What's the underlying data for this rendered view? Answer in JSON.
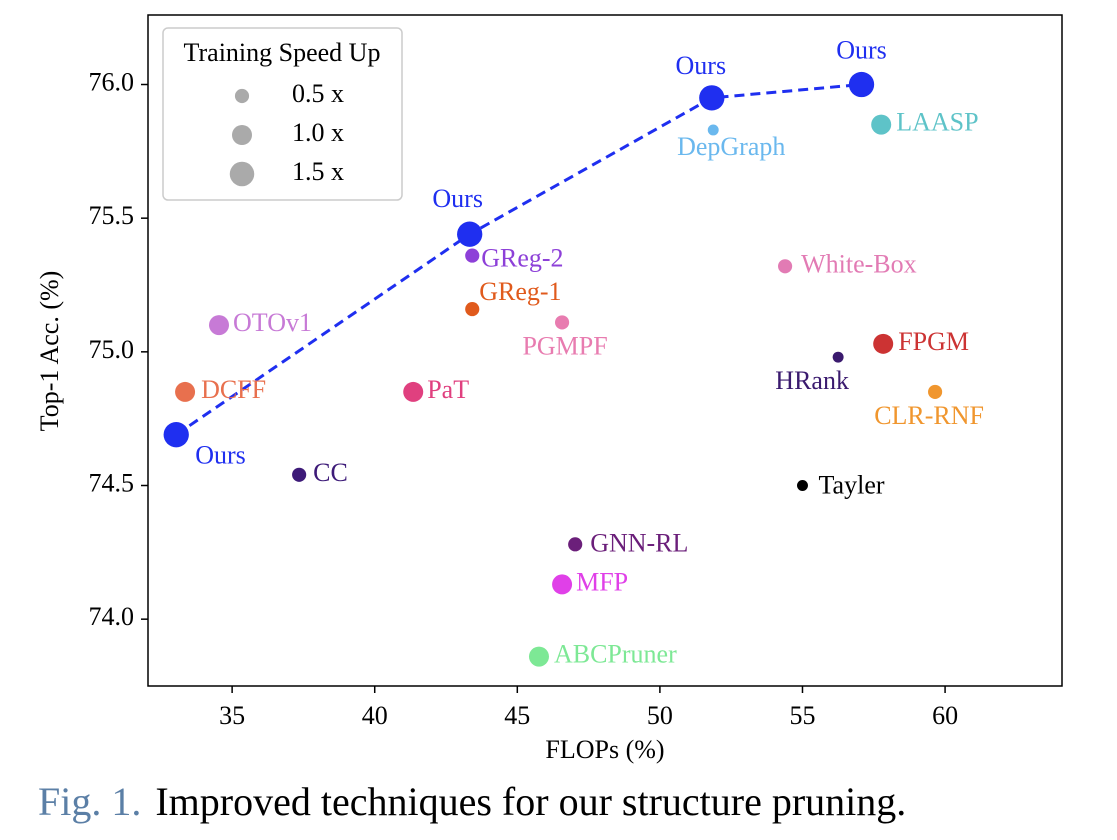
{
  "chart_data": {
    "type": "scatter",
    "xlabel": "FLOPs (%)",
    "ylabel": "Top-1 Acc. (%)",
    "xlim": [
      32.05,
      64.1
    ],
    "ylim": [
      73.75,
      76.26
    ],
    "xticks": [
      35,
      40,
      45,
      50,
      55,
      60
    ],
    "yticks": [
      {
        "value": 74,
        "label": "74.0"
      },
      {
        "value": 74.5,
        "label": "74.5"
      },
      {
        "value": 75,
        "label": "75.0"
      },
      {
        "value": 75.5,
        "label": "75.5"
      },
      {
        "value": 76,
        "label": "76.0"
      }
    ],
    "legend": {
      "title": "Training Speed Up",
      "position": "upper left",
      "sizes": [
        {
          "value": 0.5,
          "label": "0.5 x"
        },
        {
          "value": 1.0,
          "label": "1.0 x"
        },
        {
          "value": 1.5,
          "label": "1.5 x"
        }
      ]
    },
    "ours": {
      "color": "#1f2ff0",
      "linestyle": "dashed",
      "labels": [
        "Ours",
        "Ours",
        "Ours",
        "Ours"
      ],
      "x": [
        33.04,
        43.33,
        51.82,
        57.07
      ],
      "y": [
        74.69,
        75.44,
        75.95,
        76.0
      ],
      "sizes": [
        1.6,
        1.6,
        1.6,
        1.6
      ]
    },
    "points": [
      {
        "label": "DCFF",
        "x": 33.35,
        "y": 74.85,
        "size": 1.0,
        "color": "#e8704e"
      },
      {
        "label": "OTOv1",
        "x": 34.54,
        "y": 75.1,
        "size": 1.0,
        "color": "#c77ad6"
      },
      {
        "label": "PaT",
        "x": 41.35,
        "y": 74.85,
        "size": 1.0,
        "color": "#e0407f"
      },
      {
        "label": "CC",
        "x": 37.35,
        "y": 74.54,
        "size": 0.5,
        "color": "#3d1a78"
      },
      {
        "label": "GReg-2",
        "x": 43.42,
        "y": 75.36,
        "size": 0.5,
        "color": "#8d40d8"
      },
      {
        "label": "GReg-1",
        "x": 43.42,
        "y": 75.16,
        "size": 0.5,
        "color": "#e05a1c"
      },
      {
        "label": "PGMPF",
        "x": 46.57,
        "y": 75.11,
        "size": 0.5,
        "color": "#e87cb0"
      },
      {
        "label": "DepGraph",
        "x": 51.87,
        "y": 75.83,
        "size": 0.3,
        "color": "#6ab8ee"
      },
      {
        "label": "LAASP",
        "x": 57.76,
        "y": 75.85,
        "size": 1.0,
        "color": "#5ec3c8"
      },
      {
        "label": "White-Box",
        "x": 54.39,
        "y": 75.32,
        "size": 0.5,
        "color": "#e27bb4"
      },
      {
        "label": "FPGM",
        "x": 57.83,
        "y": 75.03,
        "size": 1.0,
        "color": "#cc3333"
      },
      {
        "label": "HRank",
        "x": 56.25,
        "y": 74.98,
        "size": 0.3,
        "color": "#3a1a6e"
      },
      {
        "label": "CLR-RNF",
        "x": 59.65,
        "y": 74.85,
        "size": 0.5,
        "color": "#f0962e"
      },
      {
        "label": "Tayler",
        "x": 55.0,
        "y": 74.5,
        "size": 0.3,
        "color": "#000000"
      },
      {
        "label": "GNN-RL",
        "x": 47.03,
        "y": 74.28,
        "size": 0.5,
        "color": "#6b1f7a"
      },
      {
        "label": "MFP",
        "x": 46.57,
        "y": 74.13,
        "size": 1.0,
        "color": "#e040e8"
      },
      {
        "label": "ABCPruner",
        "x": 45.76,
        "y": 73.86,
        "size": 1.0,
        "color": "#7de895"
      }
    ]
  },
  "caption": {
    "label": "Fig. 1.",
    "text": "Improved techniques for our structure pruning."
  }
}
